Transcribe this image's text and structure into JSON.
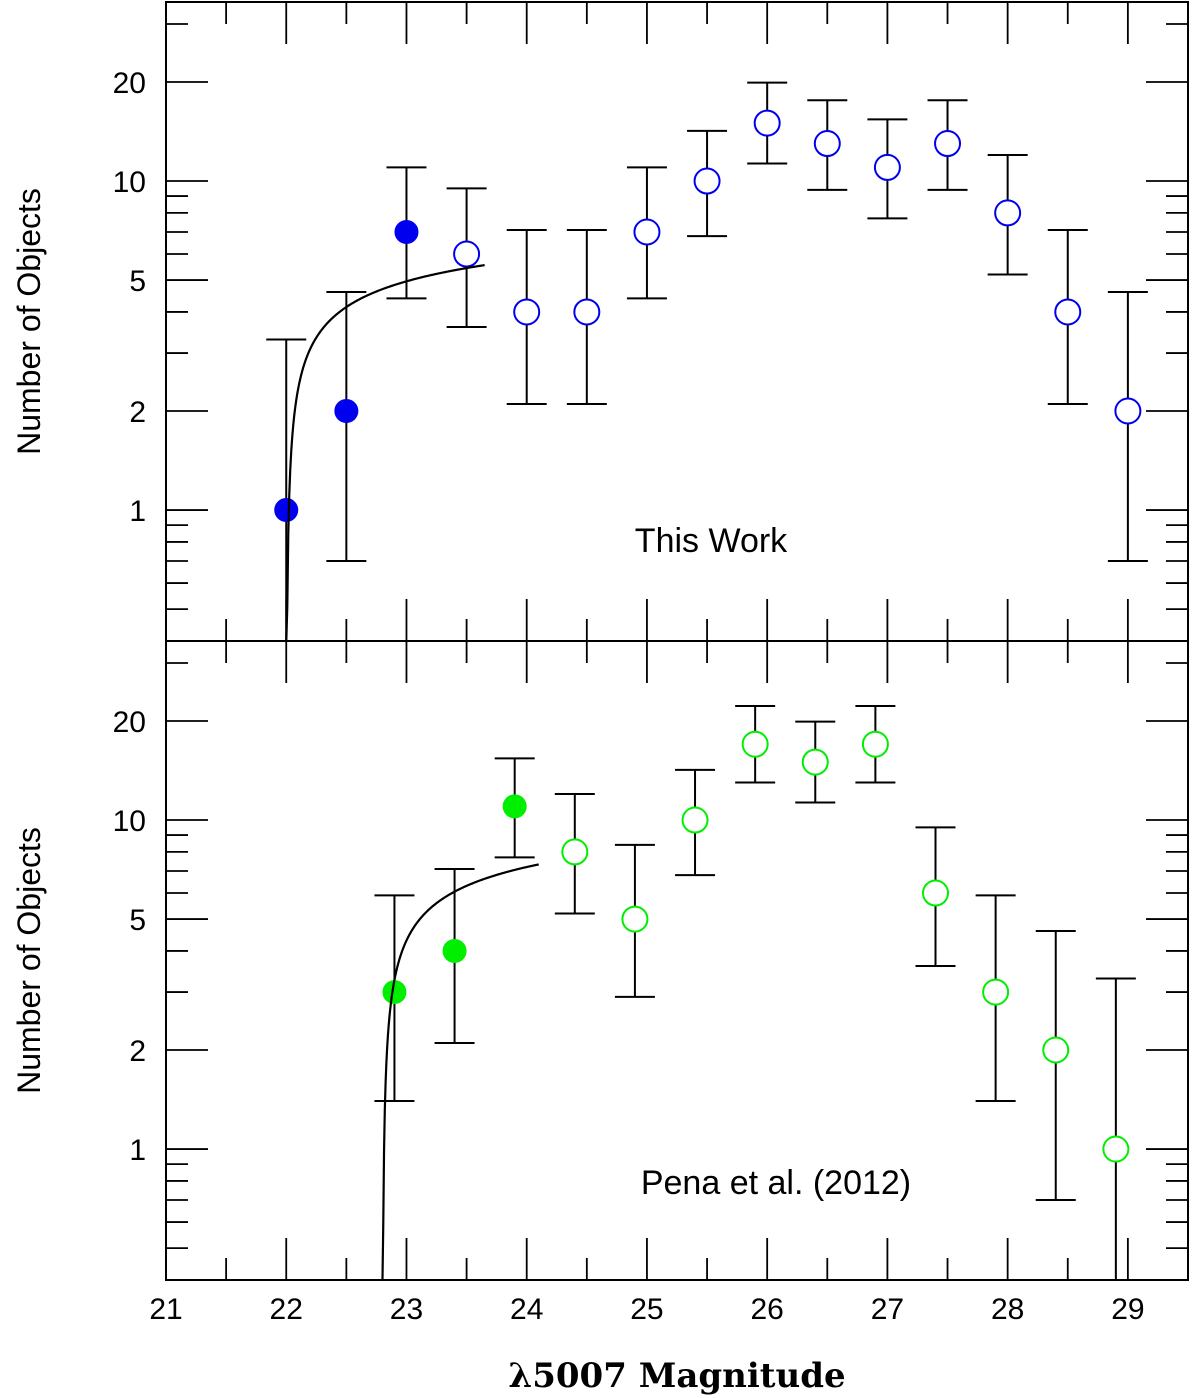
{
  "chart_data": {
    "type": "scatter",
    "xlabel": "λ5007 Magnitude",
    "xlim": [
      21,
      29.5
    ],
    "x_ticks": [
      21,
      22,
      23,
      24,
      25,
      26,
      27,
      28,
      29
    ],
    "x_tick_labels": [
      "21",
      "22",
      "23",
      "24",
      "25",
      "26",
      "27",
      "28",
      "29"
    ],
    "panels": [
      {
        "id": "top",
        "annotation": "This Work",
        "ylabel": "Number of Objects",
        "yscale": "log",
        "ylim": [
          0.4,
          35
        ],
        "y_tick_values": [
          1,
          2,
          5,
          10,
          20
        ],
        "y_tick_labels": [
          "1",
          "2",
          "5",
          "10",
          "20"
        ],
        "color": "#0000ee",
        "points": [
          {
            "x": 22.0,
            "y": 1,
            "lo": 0,
            "hi": 3.3,
            "filled": true
          },
          {
            "x": 22.5,
            "y": 2,
            "lo": 0.7,
            "hi": 4.6,
            "filled": true
          },
          {
            "x": 23.0,
            "y": 7,
            "lo": 4.4,
            "hi": 11,
            "filled": true
          },
          {
            "x": 23.5,
            "y": 6,
            "lo": 3.6,
            "hi": 9.5,
            "filled": false
          },
          {
            "x": 24.0,
            "y": 4,
            "lo": 2.1,
            "hi": 7.1,
            "filled": false
          },
          {
            "x": 24.5,
            "y": 4,
            "lo": 2.1,
            "hi": 7.1,
            "filled": false
          },
          {
            "x": 25.0,
            "y": 7,
            "lo": 4.4,
            "hi": 11,
            "filled": false
          },
          {
            "x": 25.5,
            "y": 10,
            "lo": 6.8,
            "hi": 14.2,
            "filled": false
          },
          {
            "x": 26.0,
            "y": 15,
            "lo": 11.3,
            "hi": 19.9,
            "filled": false
          },
          {
            "x": 26.5,
            "y": 13,
            "lo": 9.4,
            "hi": 17.6,
            "filled": false
          },
          {
            "x": 27.0,
            "y": 11,
            "lo": 7.7,
            "hi": 15.4,
            "filled": false
          },
          {
            "x": 27.5,
            "y": 13,
            "lo": 9.4,
            "hi": 17.6,
            "filled": false
          },
          {
            "x": 28.0,
            "y": 8,
            "lo": 5.2,
            "hi": 12,
            "filled": false
          },
          {
            "x": 28.5,
            "y": 4,
            "lo": 2.1,
            "hi": 7.1,
            "filled": false
          },
          {
            "x": 29.0,
            "y": 2,
            "lo": 0.7,
            "hi": 4.6,
            "filled": false
          }
        ],
        "fit": {
          "x0": 22.0,
          "amplitude": 4.6,
          "x_end": 23.65
        }
      },
      {
        "id": "bottom",
        "annotation": "Pena et al. (2012)",
        "ylabel": "Number of Objects",
        "yscale": "log",
        "ylim": [
          0.4,
          35
        ],
        "y_tick_values": [
          1,
          2,
          5,
          10,
          20
        ],
        "y_tick_labels": [
          "1",
          "2",
          "5",
          "10",
          "20"
        ],
        "color": "#00ee00",
        "points": [
          {
            "x": 22.9,
            "y": 3,
            "lo": 1.4,
            "hi": 5.9,
            "filled": true
          },
          {
            "x": 23.4,
            "y": 4,
            "lo": 2.1,
            "hi": 7.1,
            "filled": true
          },
          {
            "x": 23.9,
            "y": 11,
            "lo": 7.7,
            "hi": 15.4,
            "filled": true
          },
          {
            "x": 24.4,
            "y": 8,
            "lo": 5.2,
            "hi": 12,
            "filled": false
          },
          {
            "x": 24.9,
            "y": 5,
            "lo": 2.9,
            "hi": 8.4,
            "filled": false
          },
          {
            "x": 25.4,
            "y": 10,
            "lo": 6.8,
            "hi": 14.2,
            "filled": false
          },
          {
            "x": 25.9,
            "y": 17,
            "lo": 13,
            "hi": 22.2,
            "filled": false
          },
          {
            "x": 26.4,
            "y": 15,
            "lo": 11.3,
            "hi": 19.9,
            "filled": false
          },
          {
            "x": 26.9,
            "y": 17,
            "lo": 13,
            "hi": 22.2,
            "filled": false
          },
          {
            "x": 27.4,
            "y": 6,
            "lo": 3.6,
            "hi": 9.5,
            "filled": false
          },
          {
            "x": 27.9,
            "y": 3,
            "lo": 1.4,
            "hi": 5.9,
            "filled": false
          },
          {
            "x": 28.4,
            "y": 2,
            "lo": 0.7,
            "hi": 4.6,
            "filled": false
          },
          {
            "x": 28.9,
            "y": 1,
            "lo": 0,
            "hi": 3.3,
            "filled": false
          }
        ],
        "fit": {
          "x0": 22.8,
          "amplitude": 6.4,
          "x_end": 24.1
        }
      }
    ]
  }
}
